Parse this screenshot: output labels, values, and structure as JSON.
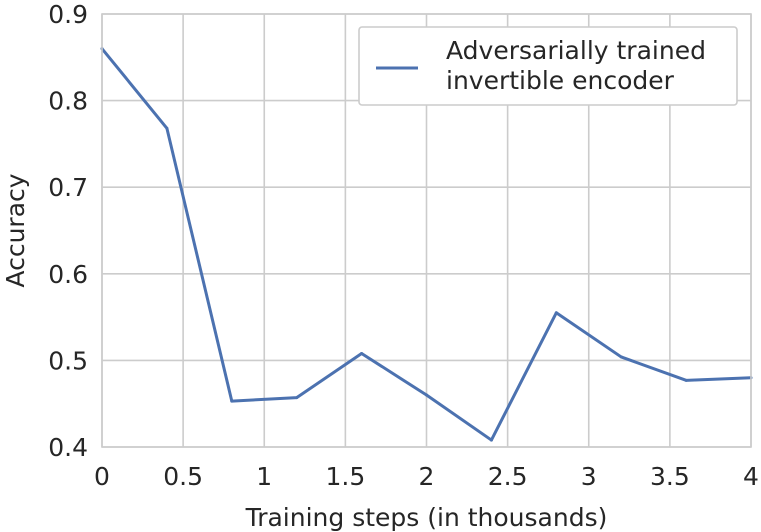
{
  "chart_data": {
    "type": "line",
    "xlabel": "Training steps (in thousands)",
    "ylabel": "Accuracy",
    "xlim": [
      0,
      4
    ],
    "ylim": [
      0.4,
      0.9
    ],
    "xticks": [
      "0",
      "0.5",
      "1",
      "1.5",
      "2",
      "2.5",
      "3",
      "3.5",
      "4"
    ],
    "yticks": [
      "0.4",
      "0.5",
      "0.6",
      "0.7",
      "0.8",
      "0.9"
    ],
    "grid": true,
    "legend_position": "top-right",
    "series": [
      {
        "name_lines": [
          "Adversarially trained",
          "invertible encoder"
        ],
        "color": "#4c72b0",
        "x": [
          0,
          0.4,
          0.8,
          1.2,
          1.6,
          2.0,
          2.4,
          2.8,
          3.2,
          3.6,
          4.0
        ],
        "y": [
          0.86,
          0.768,
          0.453,
          0.457,
          0.508,
          0.46,
          0.408,
          0.555,
          0.504,
          0.477,
          0.48
        ]
      }
    ]
  }
}
